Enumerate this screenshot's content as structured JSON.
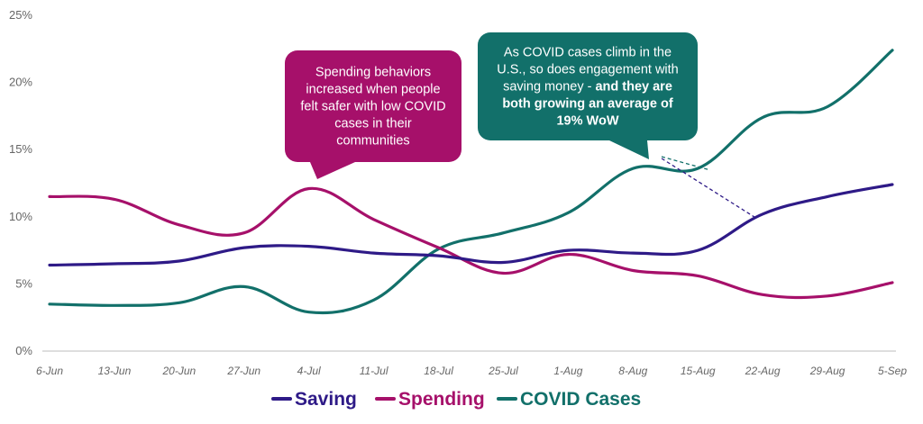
{
  "colors": {
    "saving": "#2e1a87",
    "spending": "#a6106a",
    "covid": "#12706a",
    "axis": "#bdbdbd",
    "tick_text": "#666666"
  },
  "chart_data": {
    "type": "line",
    "title": "",
    "xlabel": "",
    "ylabel": "",
    "y_unit": "%",
    "ylim": [
      0,
      25
    ],
    "yticks": [
      "0%",
      "5%",
      "10%",
      "15%",
      "20%",
      "25%"
    ],
    "grid": false,
    "legend_position": "bottom-center",
    "x": [
      "6-Jun",
      "13-Jun",
      "20-Jun",
      "27-Jun",
      "4-Jul",
      "11-Jul",
      "18-Jul",
      "25-Jul",
      "1-Aug",
      "8-Aug",
      "15-Aug",
      "22-Aug",
      "29-Aug",
      "5-Sep"
    ],
    "series": [
      {
        "name": "Saving",
        "color": "#2e1a87",
        "values": [
          6.4,
          6.5,
          6.7,
          7.7,
          7.8,
          7.3,
          7.1,
          6.6,
          7.5,
          7.3,
          7.5,
          10.2,
          11.5,
          12.4
        ]
      },
      {
        "name": "Spending",
        "color": "#a6106a",
        "values": [
          11.5,
          11.3,
          9.4,
          8.8,
          12.1,
          9.8,
          7.7,
          5.8,
          7.2,
          6.0,
          5.6,
          4.2,
          4.1,
          5.1
        ]
      },
      {
        "name": "COVID Cases",
        "color": "#12706a",
        "values": [
          3.5,
          3.4,
          3.6,
          4.8,
          2.9,
          3.8,
          7.6,
          8.8,
          10.3,
          13.6,
          13.6,
          17.4,
          18.2,
          22.4
        ]
      }
    ],
    "annotations": [
      {
        "name": "spending-annotation",
        "color": "#a6106a",
        "lines": [
          [
            {
              "text": "Spending behaviors",
              "bold": false
            }
          ],
          [
            {
              "text": "increased when people",
              "bold": false
            }
          ],
          [
            {
              "text": "felt safer with low COVID",
              "bold": false
            }
          ],
          [
            {
              "text": "cases in their",
              "bold": false
            }
          ],
          [
            {
              "text": "communities",
              "bold": false
            }
          ]
        ]
      },
      {
        "name": "covid-annotation",
        "color": "#12706a",
        "lines": [
          [
            {
              "text": "As COVID cases climb in the",
              "bold": false
            }
          ],
          [
            {
              "text": "U.S., so does engagement with",
              "bold": false
            }
          ],
          [
            {
              "text": "saving money - ",
              "bold": false
            },
            {
              "text": "and they are",
              "bold": true
            }
          ],
          [
            {
              "text": "both growing an average of",
              "bold": true
            }
          ],
          [
            {
              "text": "19% WoW",
              "bold": true
            }
          ]
        ]
      }
    ]
  }
}
